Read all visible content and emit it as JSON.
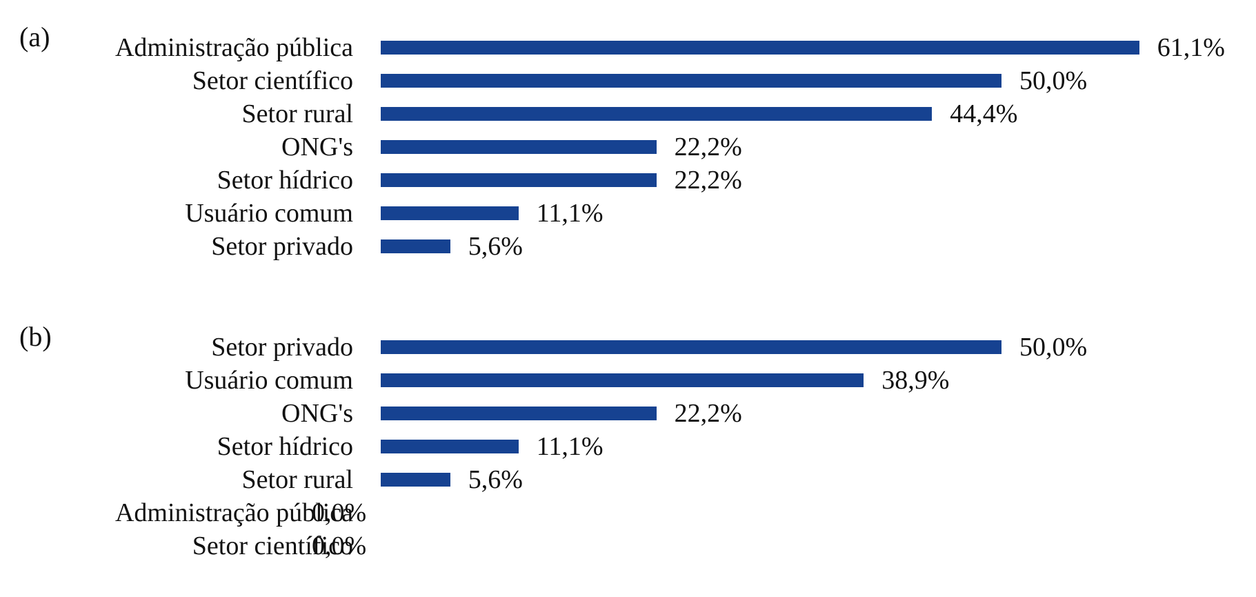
{
  "page": {
    "background": "#ffffff"
  },
  "colors": {
    "bar": "#164291",
    "text": "#111111"
  },
  "chart_data": [
    {
      "type": "bar",
      "orientation": "horizontal",
      "panel_label": "(a)",
      "title": "",
      "xlabel": "",
      "ylabel": "",
      "grid": false,
      "legend_position": "none",
      "xlim": [
        0,
        65
      ],
      "value_format": "percent-comma-decimal",
      "categories": [
        "Administração pública",
        "Setor científico",
        "Setor rural",
        "ONG's",
        "Setor hídrico",
        "Usuário comum",
        "Setor privado"
      ],
      "values": [
        61.1,
        50.0,
        44.4,
        22.2,
        22.2,
        11.1,
        5.6
      ],
      "value_labels": [
        "61,1%",
        "50,0%",
        "44,4%",
        "22,2%",
        "22,2%",
        "11,1%",
        "5,6%"
      ]
    },
    {
      "type": "bar",
      "orientation": "horizontal",
      "panel_label": "(b)",
      "title": "",
      "xlabel": "",
      "ylabel": "",
      "grid": false,
      "legend_position": "none",
      "xlim": [
        0,
        65
      ],
      "value_format": "percent-comma-decimal",
      "categories": [
        "Setor privado",
        "Usuário comum",
        "ONG's",
        "Setor hídrico",
        "Setor rural",
        "Administração pública",
        "Setor científico"
      ],
      "values": [
        50.0,
        38.9,
        22.2,
        11.1,
        5.6,
        0.0,
        0.0
      ],
      "value_labels": [
        "50,0%",
        "38,9%",
        "22,2%",
        "11,1%",
        "5,6%",
        "0,0%",
        "0,0%"
      ]
    }
  ]
}
